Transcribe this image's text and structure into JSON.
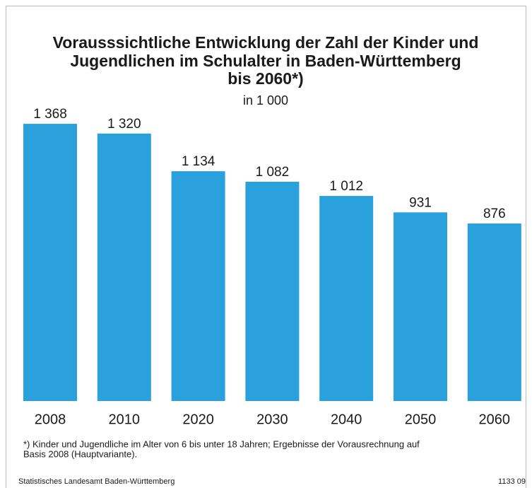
{
  "chart_data": {
    "type": "bar",
    "title": [
      "Vorausssichtliche Entwicklung der Zahl der Kinder und",
      "Jugendlichen im Schulalter in Baden-Württemberg",
      "bis 2060*)"
    ],
    "subtitle": "in 1 000",
    "categories": [
      "2008",
      "2010",
      "2020",
      "2030",
      "2040",
      "2050",
      "2060"
    ],
    "values": [
      1368,
      1320,
      1134,
      1082,
      1012,
      931,
      876
    ],
    "value_labels": [
      "1 368",
      "1 320",
      "1 134",
      "1 082",
      "1 012",
      "931",
      "876"
    ],
    "color": "#2aa0dc",
    "footnote": [
      "*) Kinder und Jugendliche im Alter von 6 bis unter 18 Jahren; Ergebnisse der Vorausrechnung auf",
      "Basis 2008 (Hauptvariante)."
    ],
    "source": "Statistisches Landesamt Baden-Württemberg",
    "code": "1133 09"
  }
}
